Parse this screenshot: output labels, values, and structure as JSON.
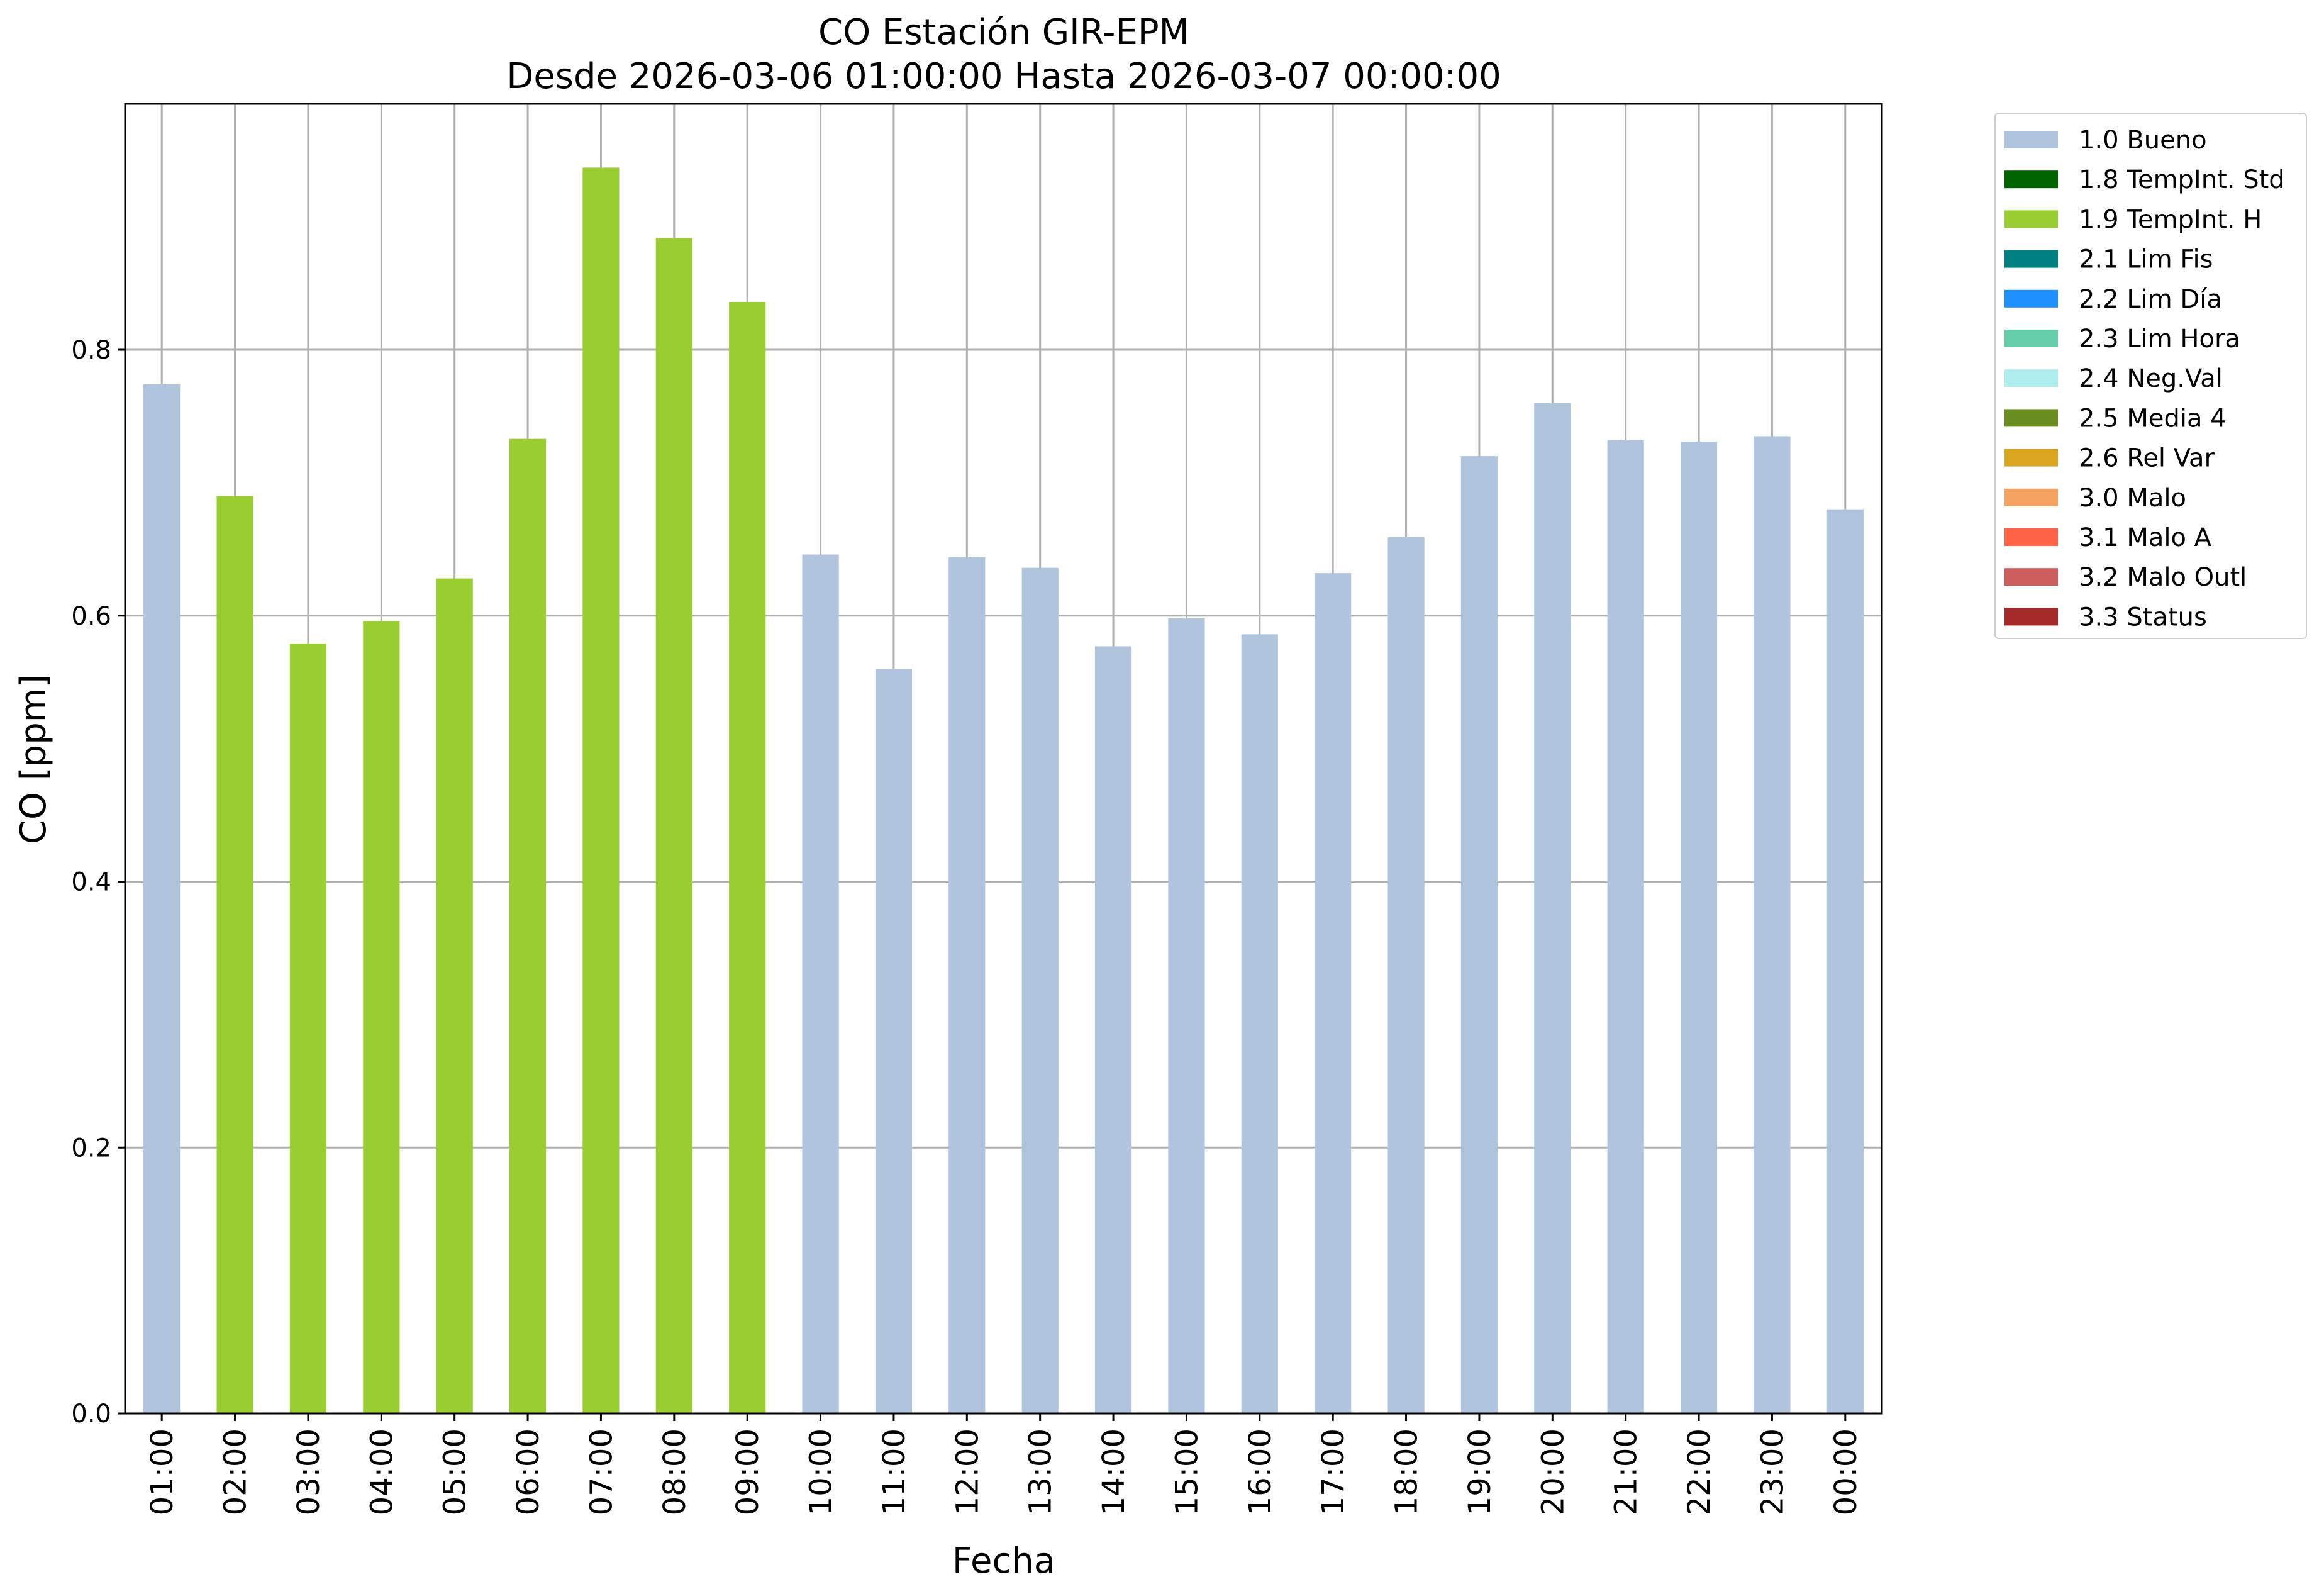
{
  "chart_data": {
    "type": "bar",
    "title": "CO Estación GIR-EPM",
    "subtitle": "Desde 2026-03-06 01:00:00 Hasta 2026-03-07 00:00:00",
    "xlabel": "Fecha",
    "ylabel": "CO [ppm]",
    "ylim": [
      0,
      0.985
    ],
    "yticks": [
      "0.0",
      "0.2",
      "0.4",
      "0.6",
      "0.8"
    ],
    "grid": true,
    "legend_position": "outside-top-right",
    "categories": [
      "01:00",
      "02:00",
      "03:00",
      "04:00",
      "05:00",
      "06:00",
      "07:00",
      "08:00",
      "09:00",
      "10:00",
      "11:00",
      "12:00",
      "13:00",
      "14:00",
      "15:00",
      "16:00",
      "17:00",
      "18:00",
      "19:00",
      "20:00",
      "21:00",
      "22:00",
      "23:00",
      "00:00"
    ],
    "values": [
      0.774,
      0.69,
      0.579,
      0.596,
      0.628,
      0.733,
      0.937,
      0.884,
      0.836,
      0.646,
      0.56,
      0.644,
      0.636,
      0.577,
      0.598,
      0.586,
      0.632,
      0.659,
      0.72,
      0.76,
      0.732,
      0.731,
      0.735,
      0.68
    ],
    "flags": [
      "1.0 Bueno",
      "1.9 TempInt. H",
      "1.9 TempInt. H",
      "1.9 TempInt. H",
      "1.9 TempInt. H",
      "1.9 TempInt. H",
      "1.9 TempInt. H",
      "1.9 TempInt. H",
      "1.9 TempInt. H",
      "1.0 Bueno",
      "1.0 Bueno",
      "1.0 Bueno",
      "1.0 Bueno",
      "1.0 Bueno",
      "1.0 Bueno",
      "1.0 Bueno",
      "1.0 Bueno",
      "1.0 Bueno",
      "1.0 Bueno",
      "1.0 Bueno",
      "1.0 Bueno",
      "1.0 Bueno",
      "1.0 Bueno",
      "1.0 Bueno"
    ],
    "legend": [
      {
        "label": "1.0 Bueno",
        "color": "#b0c4de"
      },
      {
        "label": "1.8 TempInt. Std",
        "color": "#006400"
      },
      {
        "label": "1.9 TempInt. H",
        "color": "#9acd32"
      },
      {
        "label": "2.1 Lim Fis",
        "color": "#008080"
      },
      {
        "label": "2.2 Lim Día",
        "color": "#1e90ff"
      },
      {
        "label": "2.3 Lim Hora",
        "color": "#66cdaa"
      },
      {
        "label": "2.4 Neg.Val",
        "color": "#afeeee"
      },
      {
        "label": "2.5 Media 4",
        "color": "#6b8e23"
      },
      {
        "label": "2.6 Rel Var",
        "color": "#daa520"
      },
      {
        "label": "3.0 Malo",
        "color": "#f4a460"
      },
      {
        "label": "3.1 Malo A",
        "color": "#ff6347"
      },
      {
        "label": "3.2 Malo Outl",
        "color": "#cd5c5c"
      },
      {
        "label": "3.3 Status",
        "color": "#a52a2a"
      }
    ]
  }
}
